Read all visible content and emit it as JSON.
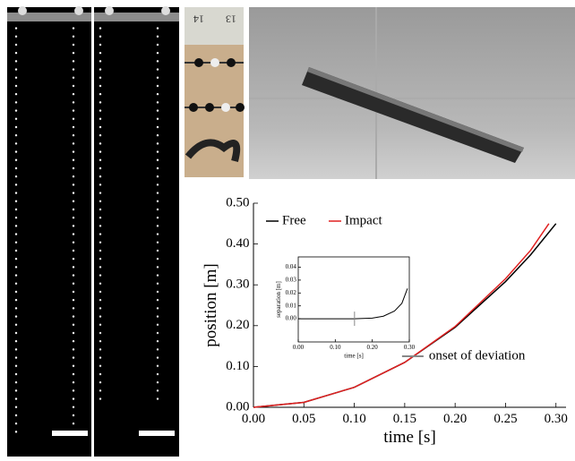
{
  "photo_labels": {
    "ruler": [
      "14",
      "13"
    ]
  },
  "chart_data": [
    {
      "type": "line",
      "xlabel": "time [s]",
      "ylabel": "position [m]",
      "xlim": [
        0,
        0.31
      ],
      "ylim": [
        0,
        0.5
      ],
      "xticks": [
        {
          "value": 0,
          "label": "0.00"
        },
        {
          "value": 0.05,
          "label": "0.05"
        },
        {
          "value": 0.1,
          "label": "0.10"
        },
        {
          "value": 0.15,
          "label": "0.15"
        },
        {
          "value": 0.2,
          "label": "0.20"
        },
        {
          "value": 0.25,
          "label": "0.25"
        },
        {
          "value": 0.3,
          "label": "0.30"
        }
      ],
      "yticks": [
        {
          "value": 0,
          "label": "0.00"
        },
        {
          "value": 0.1,
          "label": "0.10"
        },
        {
          "value": 0.2,
          "label": "0.20"
        },
        {
          "value": 0.3,
          "label": "0.30"
        },
        {
          "value": 0.4,
          "label": "0.40"
        },
        {
          "value": 0.5,
          "label": "0.50"
        }
      ],
      "legend": "upper left",
      "series": [
        {
          "name": "Free",
          "color": "#000000",
          "x": [
            0,
            0.05,
            0.1,
            0.15,
            0.2,
            0.25,
            0.275,
            0.3
          ],
          "values": [
            0,
            0.012,
            0.049,
            0.11,
            0.196,
            0.308,
            0.374,
            0.45
          ]
        },
        {
          "name": "Impact",
          "color": "#e02020",
          "x": [
            0,
            0.05,
            0.1,
            0.15,
            0.2,
            0.25,
            0.275,
            0.293
          ],
          "values": [
            0,
            0.012,
            0.049,
            0.11,
            0.198,
            0.315,
            0.385,
            0.45
          ]
        }
      ],
      "annotation": {
        "text": "onset of deviation",
        "x": 0.158,
        "y": 0.125
      }
    },
    {
      "type": "line",
      "xlabel": "time [s]",
      "ylabel": "separation [m]",
      "xlim": [
        0,
        0.3
      ],
      "ylim": [
        -0.018,
        0.048
      ],
      "xticks": [
        {
          "value": 0,
          "label": "0.00"
        },
        {
          "value": 0.1,
          "label": "0.10"
        },
        {
          "value": 0.2,
          "label": "0.20"
        },
        {
          "value": 0.3,
          "label": "0.30"
        }
      ],
      "yticks": [
        {
          "value": 0,
          "label": "0.00"
        },
        {
          "value": 0.01,
          "label": "0.01"
        },
        {
          "value": 0.02,
          "label": "0.02"
        },
        {
          "value": 0.03,
          "label": "0.03"
        },
        {
          "value": 0.04,
          "label": "0.04"
        }
      ],
      "series": [
        {
          "color": "#000000",
          "x": [
            0,
            0.15,
            0.2,
            0.23,
            0.26,
            0.28,
            0.295
          ],
          "values": [
            0,
            0,
            0.0005,
            0.002,
            0.006,
            0.012,
            0.0235
          ]
        }
      ],
      "marker_x": 0.152
    }
  ]
}
